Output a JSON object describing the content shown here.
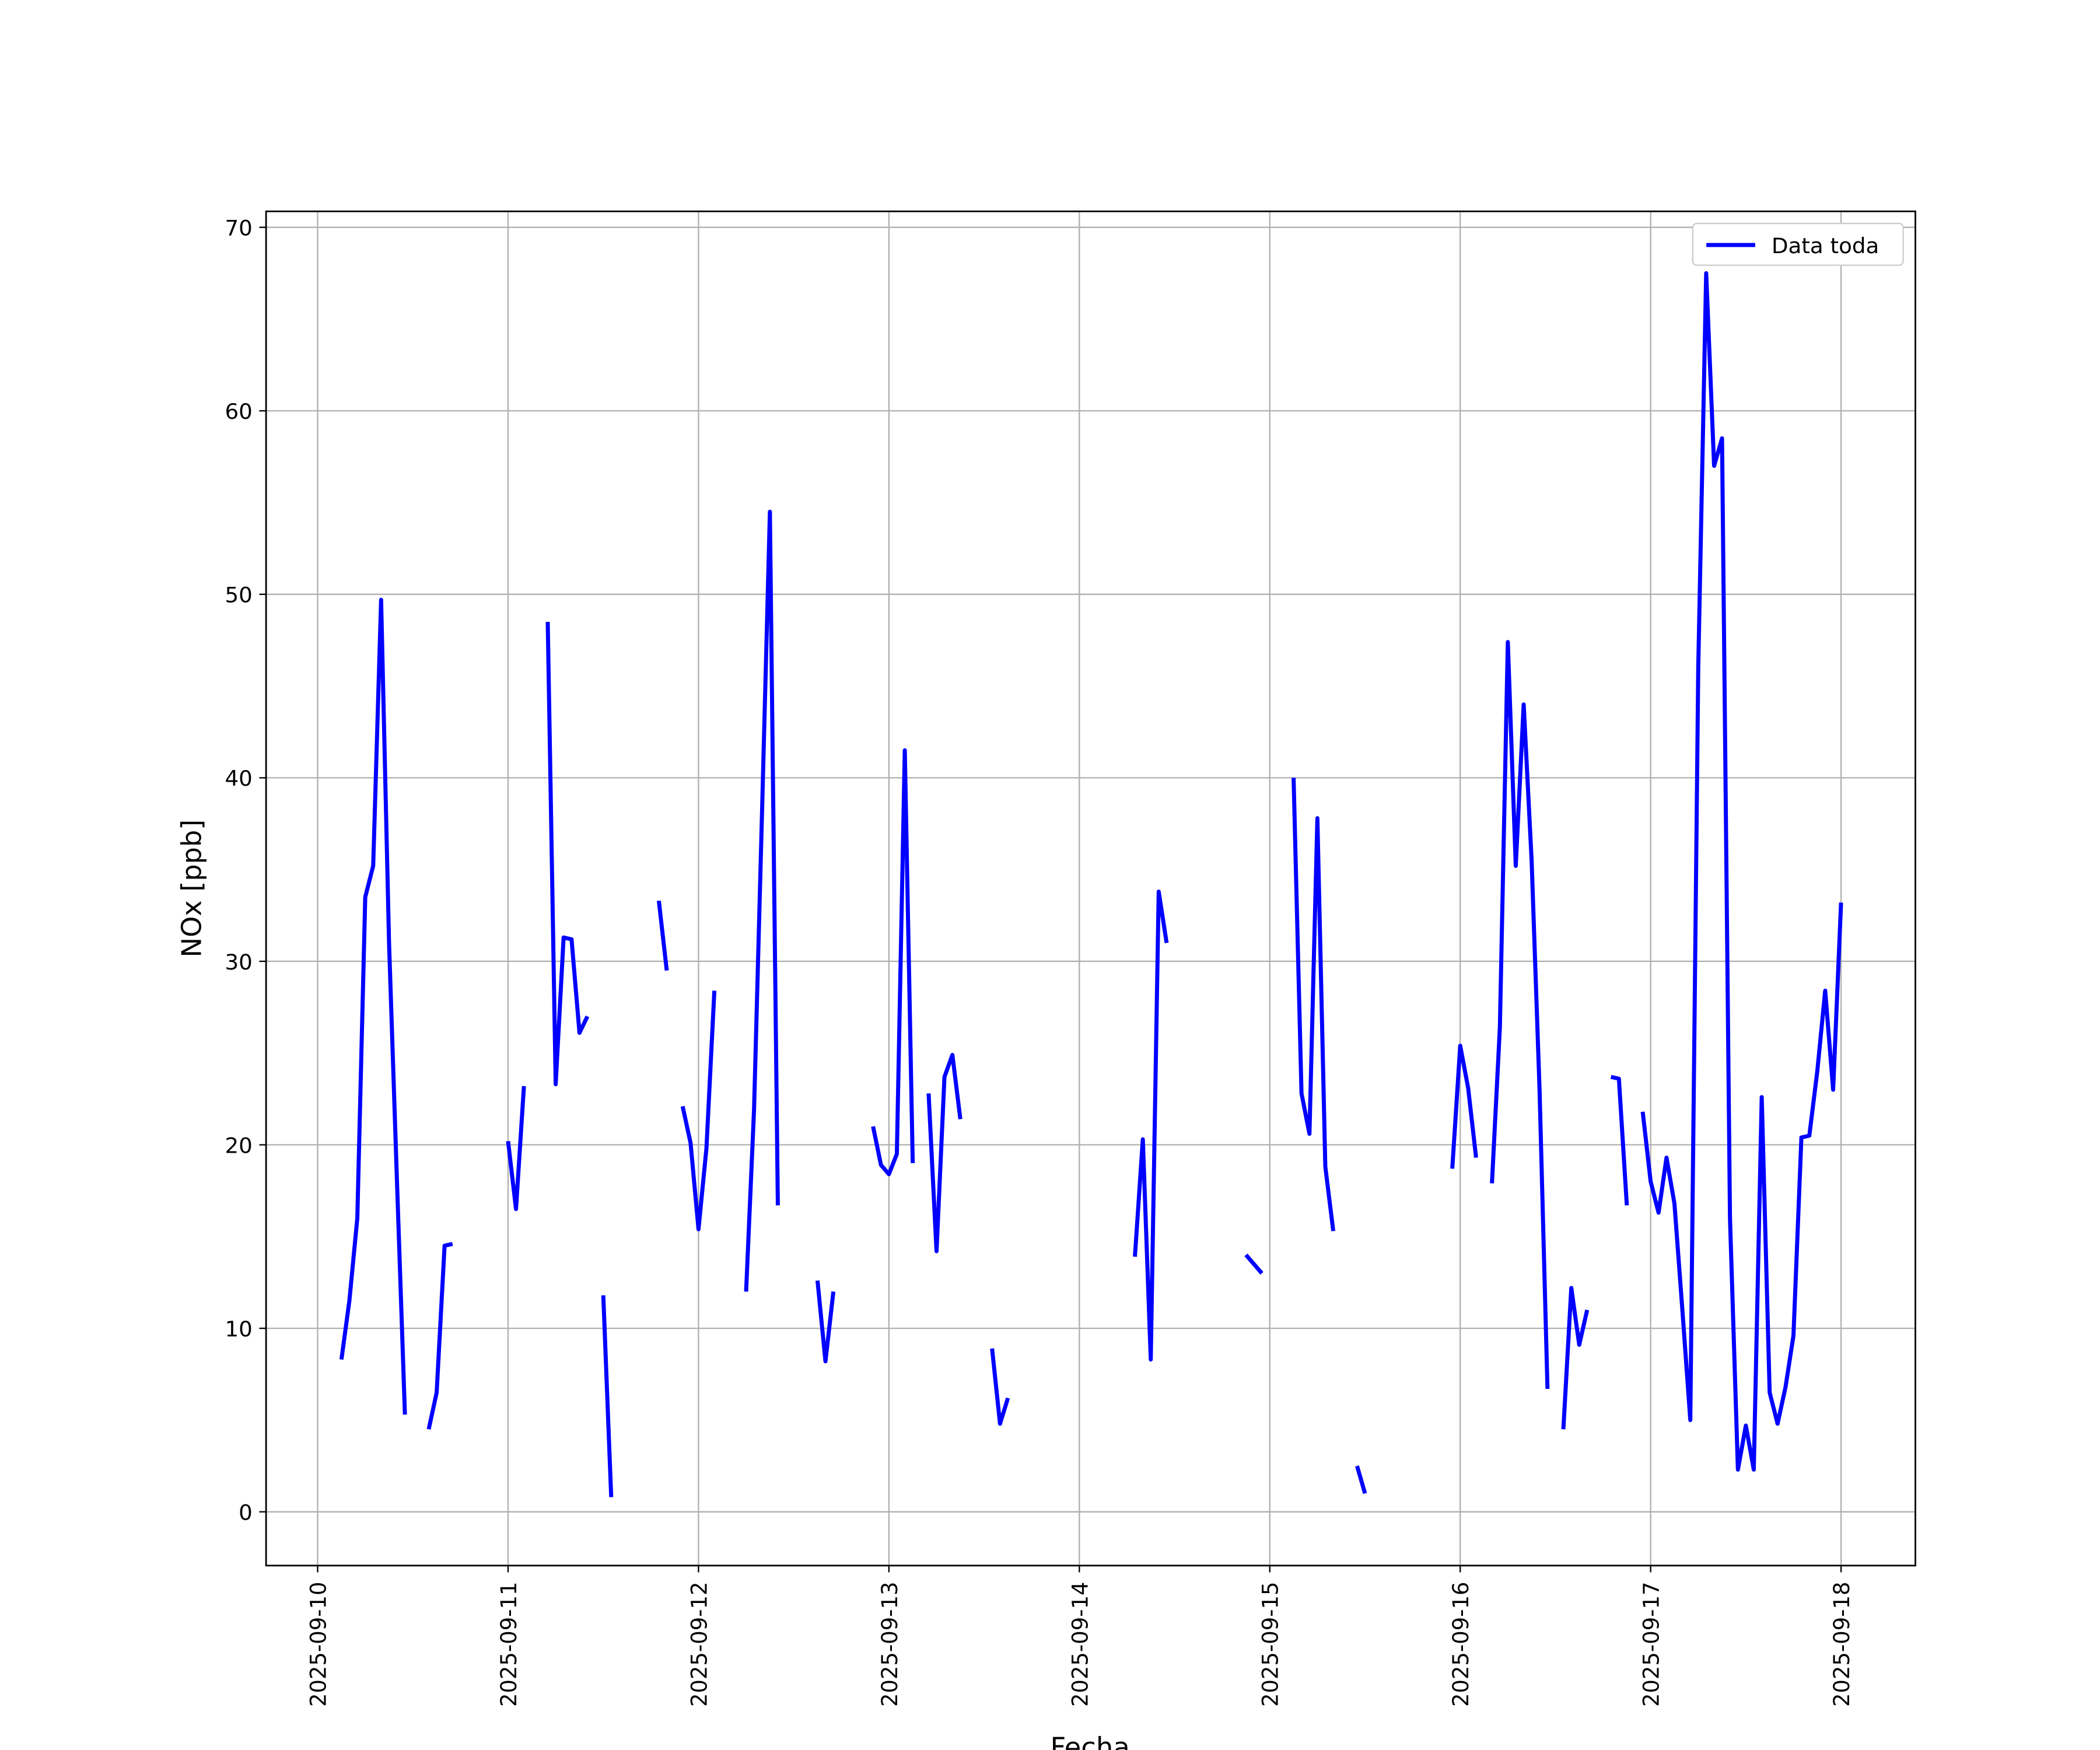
{
  "chart_data": {
    "type": "line",
    "xlabel": "Fecha",
    "ylabel": "NOx [ppb]",
    "grid": true,
    "legend": "upper right",
    "xlim": [
      "2025-09-09T17:30",
      "2025-09-18T09:22"
    ],
    "xticks": [
      "2025-09-10",
      "2025-09-11",
      "2025-09-12",
      "2025-09-13",
      "2025-09-14",
      "2025-09-15",
      "2025-09-16",
      "2025-09-17",
      "2025-09-18"
    ],
    "ylim": [
      -2.93,
      70.87
    ],
    "yticks": [
      0,
      10,
      20,
      30,
      40,
      50,
      60,
      70
    ],
    "x": [
      "2025-09-10T03:00",
      "2025-09-10T04:00",
      "2025-09-10T05:00",
      "2025-09-10T06:00",
      "2025-09-10T07:00",
      "2025-09-10T08:00",
      "2025-09-10T09:00",
      "2025-09-10T10:00",
      "2025-09-10T11:00",
      "2025-09-10T12:00",
      "2025-09-10T14:00",
      "2025-09-10T15:00",
      "2025-09-10T16:00",
      "2025-09-10T17:00",
      "2025-09-10T18:00",
      "2025-09-11T00:00",
      "2025-09-11T01:00",
      "2025-09-11T02:00",
      "2025-09-11T03:00",
      "2025-09-11T05:00",
      "2025-09-11T06:00",
      "2025-09-11T07:00",
      "2025-09-11T08:00",
      "2025-09-11T09:00",
      "2025-09-11T10:00",
      "2025-09-11T11:00",
      "2025-09-11T12:00",
      "2025-09-11T13:00",
      "2025-09-11T14:00",
      "2025-09-11T19:00",
      "2025-09-11T20:00",
      "2025-09-11T21:00",
      "2025-09-11T22:00",
      "2025-09-11T23:00",
      "2025-09-12T00:00",
      "2025-09-12T01:00",
      "2025-09-12T02:00",
      "2025-09-12T03:00",
      "2025-09-12T06:00",
      "2025-09-12T07:00",
      "2025-09-12T08:00",
      "2025-09-12T09:00",
      "2025-09-12T10:00",
      "2025-09-12T11:00",
      "2025-09-12T15:00",
      "2025-09-12T16:00",
      "2025-09-12T17:00",
      "2025-09-12T18:00",
      "2025-09-12T22:00",
      "2025-09-12T23:00",
      "2025-09-13T00:00",
      "2025-09-13T01:00",
      "2025-09-13T02:00",
      "2025-09-13T03:00",
      "2025-09-13T04:00",
      "2025-09-13T05:00",
      "2025-09-13T06:00",
      "2025-09-13T07:00",
      "2025-09-13T08:00",
      "2025-09-13T09:00",
      "2025-09-13T10:00",
      "2025-09-13T13:00",
      "2025-09-13T14:00",
      "2025-09-13T15:00",
      "2025-09-13T16:00",
      "2025-09-14T07:00",
      "2025-09-14T08:00",
      "2025-09-14T09:00",
      "2025-09-14T10:00",
      "2025-09-14T11:00",
      "2025-09-14T12:00",
      "2025-09-14T21:00",
      "2025-09-14T22:00",
      "2025-09-14T23:00",
      "2025-09-15T00:00",
      "2025-09-15T03:00",
      "2025-09-15T04:00",
      "2025-09-15T05:00",
      "2025-09-15T06:00",
      "2025-09-15T07:00",
      "2025-09-15T08:00",
      "2025-09-15T09:00",
      "2025-09-15T11:00",
      "2025-09-15T12:00",
      "2025-09-15T13:00",
      "2025-09-15T23:00",
      "2025-09-16T00:00",
      "2025-09-16T01:00",
      "2025-09-16T02:00",
      "2025-09-16T03:00",
      "2025-09-16T04:00",
      "2025-09-16T05:00",
      "2025-09-16T06:00",
      "2025-09-16T07:00",
      "2025-09-16T08:00",
      "2025-09-16T09:00",
      "2025-09-16T10:00",
      "2025-09-16T11:00",
      "2025-09-16T12:00",
      "2025-09-16T13:00",
      "2025-09-16T14:00",
      "2025-09-16T15:00",
      "2025-09-16T16:00",
      "2025-09-16T17:00",
      "2025-09-16T19:00",
      "2025-09-16T20:00",
      "2025-09-16T21:00",
      "2025-09-16T22:00",
      "2025-09-16T23:00",
      "2025-09-17T00:00",
      "2025-09-17T01:00",
      "2025-09-17T02:00",
      "2025-09-17T03:00",
      "2025-09-17T04:00",
      "2025-09-17T05:00",
      "2025-09-17T06:00",
      "2025-09-17T07:00",
      "2025-09-17T08:00",
      "2025-09-17T09:00",
      "2025-09-17T10:00",
      "2025-09-17T11:00",
      "2025-09-17T12:00",
      "2025-09-17T13:00",
      "2025-09-17T14:00",
      "2025-09-17T15:00",
      "2025-09-17T16:00",
      "2025-09-17T17:00",
      "2025-09-17T18:00",
      "2025-09-17T19:00",
      "2025-09-17T20:00",
      "2025-09-17T21:00",
      "2025-09-17T22:00",
      "2025-09-17T23:00",
      "2025-09-18T00:00"
    ],
    "series": [
      {
        "name": "Data toda",
        "color": "#0000ff",
        "values": [
          8.3,
          11.5,
          16,
          33.5,
          35.2,
          49.7,
          31,
          18,
          5.3,
          null,
          4.5,
          6.5,
          14.5,
          14.6,
          null,
          20.2,
          16.5,
          23.2,
          null,
          48.5,
          23.3,
          31.3,
          31.2,
          26.1,
          27,
          null,
          11.8,
          0.8,
          null,
          33.3,
          29.5,
          null,
          22.1,
          20.1,
          15.4,
          19.8,
          28.4,
          null,
          12,
          21.9,
          38,
          54.5,
          16.7,
          null,
          12.6,
          8.2,
          12,
          null,
          21,
          18.9,
          18.4,
          19.5,
          41.5,
          19,
          null,
          22.8,
          14.2,
          23.7,
          24.9,
          21.4,
          null,
          8.9,
          4.8,
          6.2,
          null,
          13.9,
          20.3,
          8.3,
          33.8,
          31,
          null,
          14,
          13.5,
          13,
          null,
          40,
          22.8,
          20.6,
          37.8,
          18.8,
          15.3,
          null,
          2.5,
          1,
          null,
          18.7,
          25.4,
          23.1,
          19.3,
          null,
          17.9,
          26.4,
          47.4,
          35.2,
          44,
          35.5,
          23,
          6.7,
          null,
          4.5,
          12.2,
          9.1,
          11,
          null,
          23.7,
          23.6,
          16.7,
          null,
          21.8,
          18,
          16.3,
          19.3,
          16.8,
          11,
          5,
          46,
          67.5,
          57,
          58.5,
          16,
          2.3,
          4.7,
          2.3,
          22.6,
          6.5,
          4.8,
          6.8,
          9.6,
          20.4,
          20.5,
          24,
          28.4,
          23,
          33.2
        ]
      }
    ]
  }
}
